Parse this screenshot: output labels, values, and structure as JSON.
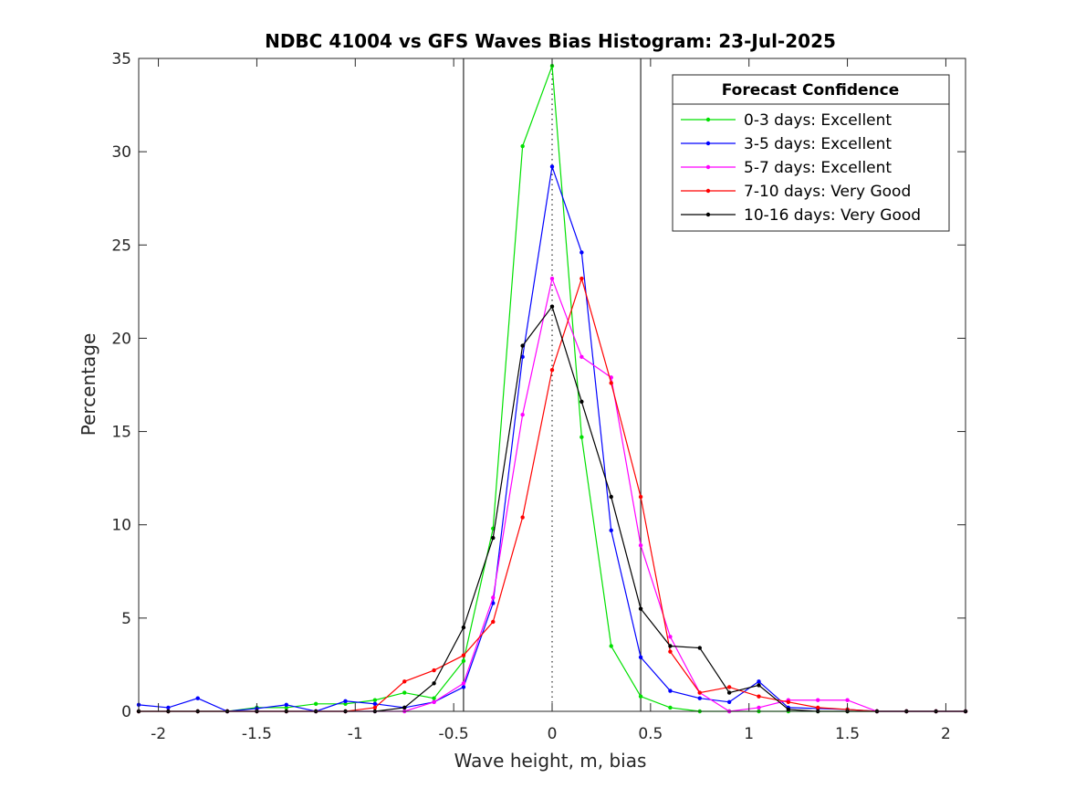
{
  "chart_data": {
    "type": "line",
    "title": "NDBC 41004 vs GFS Waves Bias Histogram: 23-Jul-2025",
    "xlabel": "Wave height, m, bias",
    "ylabel": "Percentage",
    "xlim": [
      -2.1,
      2.1
    ],
    "ylim": [
      0,
      35
    ],
    "xticks": [
      -2,
      -1.5,
      -1,
      -0.5,
      0,
      0.5,
      1,
      1.5,
      2
    ],
    "xtick_labels": [
      "-2",
      "-1.5",
      "-1",
      "-0.5",
      "0",
      "0.5",
      "1",
      "1.5",
      "2"
    ],
    "yticks": [
      0,
      5,
      10,
      15,
      20,
      25,
      30,
      35
    ],
    "ytick_labels": [
      "0",
      "5",
      "10",
      "15",
      "20",
      "25",
      "30",
      "35"
    ],
    "grid": false,
    "reference_lines": {
      "solid_vertical": [
        -0.45,
        0.45
      ],
      "dotted_vertical": [
        0
      ]
    },
    "legend": {
      "title": "Forecast Confidence",
      "placement": "top-right"
    },
    "x": [
      -2.1,
      -1.95,
      -1.8,
      -1.65,
      -1.5,
      -1.35,
      -1.2,
      -1.05,
      -0.9,
      -0.75,
      -0.6,
      -0.45,
      -0.3,
      -0.15,
      0,
      0.15,
      0.3,
      0.45,
      0.6,
      0.75,
      0.9,
      1.05,
      1.2,
      1.35,
      1.5,
      1.65,
      1.8,
      1.95,
      2.1
    ],
    "series": [
      {
        "name": "0-3 days: Excellent",
        "color": "#00e000",
        "values": [
          0,
          0,
          0,
          0,
          0.2,
          0.2,
          0.4,
          0.4,
          0.6,
          1.0,
          0.7,
          2.7,
          9.8,
          30.3,
          34.6,
          14.7,
          3.5,
          0.8,
          0.2,
          0,
          0,
          0,
          0,
          0,
          0,
          0,
          0,
          0,
          0
        ]
      },
      {
        "name": "3-5 days: Excellent",
        "color": "#0000ff",
        "values": [
          0.35,
          0.2,
          0.7,
          0,
          0.15,
          0.35,
          0,
          0.55,
          0.4,
          0.2,
          0.5,
          1.3,
          5.8,
          19.0,
          29.2,
          24.6,
          9.7,
          2.9,
          1.1,
          0.7,
          0.5,
          1.6,
          0.2,
          0.15,
          0.1,
          0,
          0,
          0,
          0
        ]
      },
      {
        "name": "5-7 days: Excellent",
        "color": "#ff00ff",
        "values": [
          0,
          0,
          0,
          0,
          0,
          0,
          0,
          0,
          0,
          0,
          0.5,
          1.5,
          6.1,
          15.9,
          23.2,
          19.0,
          17.9,
          8.9,
          4.0,
          1.0,
          0,
          0.2,
          0.6,
          0.6,
          0.6,
          0,
          0,
          0,
          0
        ]
      },
      {
        "name": "7-10 days: Very Good",
        "color": "#ff0000",
        "values": [
          0,
          0,
          0,
          0,
          0,
          0,
          0,
          0,
          0.2,
          1.6,
          2.2,
          3.0,
          4.8,
          10.4,
          18.3,
          23.2,
          17.6,
          11.5,
          3.2,
          1.0,
          1.3,
          0.8,
          0.5,
          0.2,
          0.1,
          0,
          0,
          0,
          0
        ]
      },
      {
        "name": "10-16 days: Very Good",
        "color": "#000000",
        "values": [
          0,
          0,
          0,
          0,
          0,
          0,
          0,
          0,
          0,
          0.2,
          1.5,
          4.5,
          9.3,
          19.6,
          21.7,
          16.6,
          11.5,
          5.5,
          3.5,
          3.4,
          1.0,
          1.4,
          0.1,
          0,
          0,
          0,
          0,
          0,
          0
        ]
      }
    ]
  }
}
